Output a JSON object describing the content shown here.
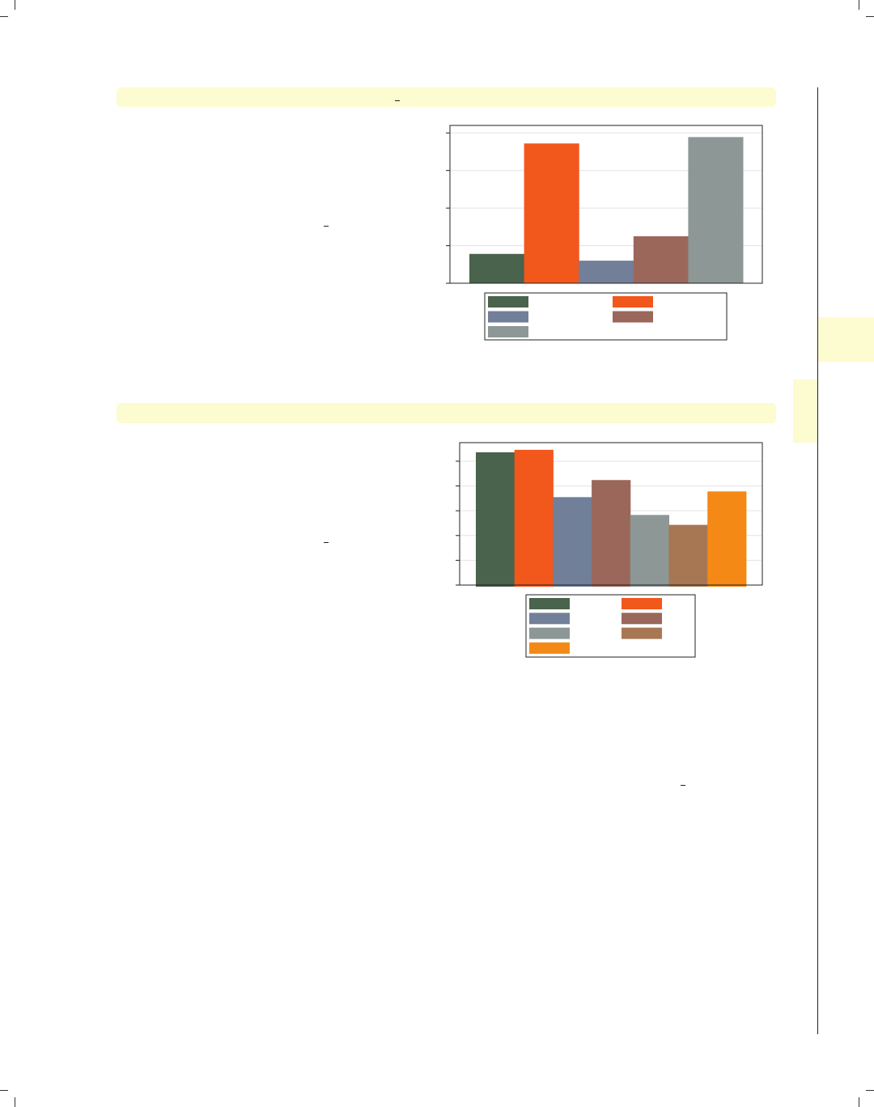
{
  "colors": {
    "highlight": "#fdfbd0",
    "series": [
      "#4a634c",
      "#f2571c",
      "#717f99",
      "#9b675b",
      "#8c9796",
      "#a77753",
      "#f48915"
    ]
  },
  "chart_data": [
    {
      "type": "bar",
      "title": "",
      "xlabel": "",
      "ylabel": "",
      "ylim": [
        0,
        4.2
      ],
      "yticks": [
        0,
        1,
        2,
        3,
        4
      ],
      "grid": true,
      "legend": "bottom",
      "series": [
        {
          "values": [
            0.78
          ]
        },
        {
          "values": [
            3.72
          ]
        },
        {
          "values": [
            0.6
          ]
        },
        {
          "values": [
            1.25
          ]
        },
        {
          "values": [
            3.89
          ]
        }
      ]
    },
    {
      "type": "bar",
      "title": "",
      "xlabel": "",
      "ylabel": "",
      "ylim": [
        0,
        5.75
      ],
      "yticks": [
        0,
        1,
        2,
        3,
        4,
        5
      ],
      "grid": true,
      "legend": "bottom",
      "series": [
        {
          "values": [
            5.36
          ]
        },
        {
          "values": [
            5.46
          ]
        },
        {
          "values": [
            3.55
          ]
        },
        {
          "values": [
            4.24
          ]
        },
        {
          "values": [
            2.83
          ]
        },
        {
          "values": [
            2.43
          ]
        },
        {
          "values": [
            3.78
          ]
        }
      ]
    }
  ]
}
